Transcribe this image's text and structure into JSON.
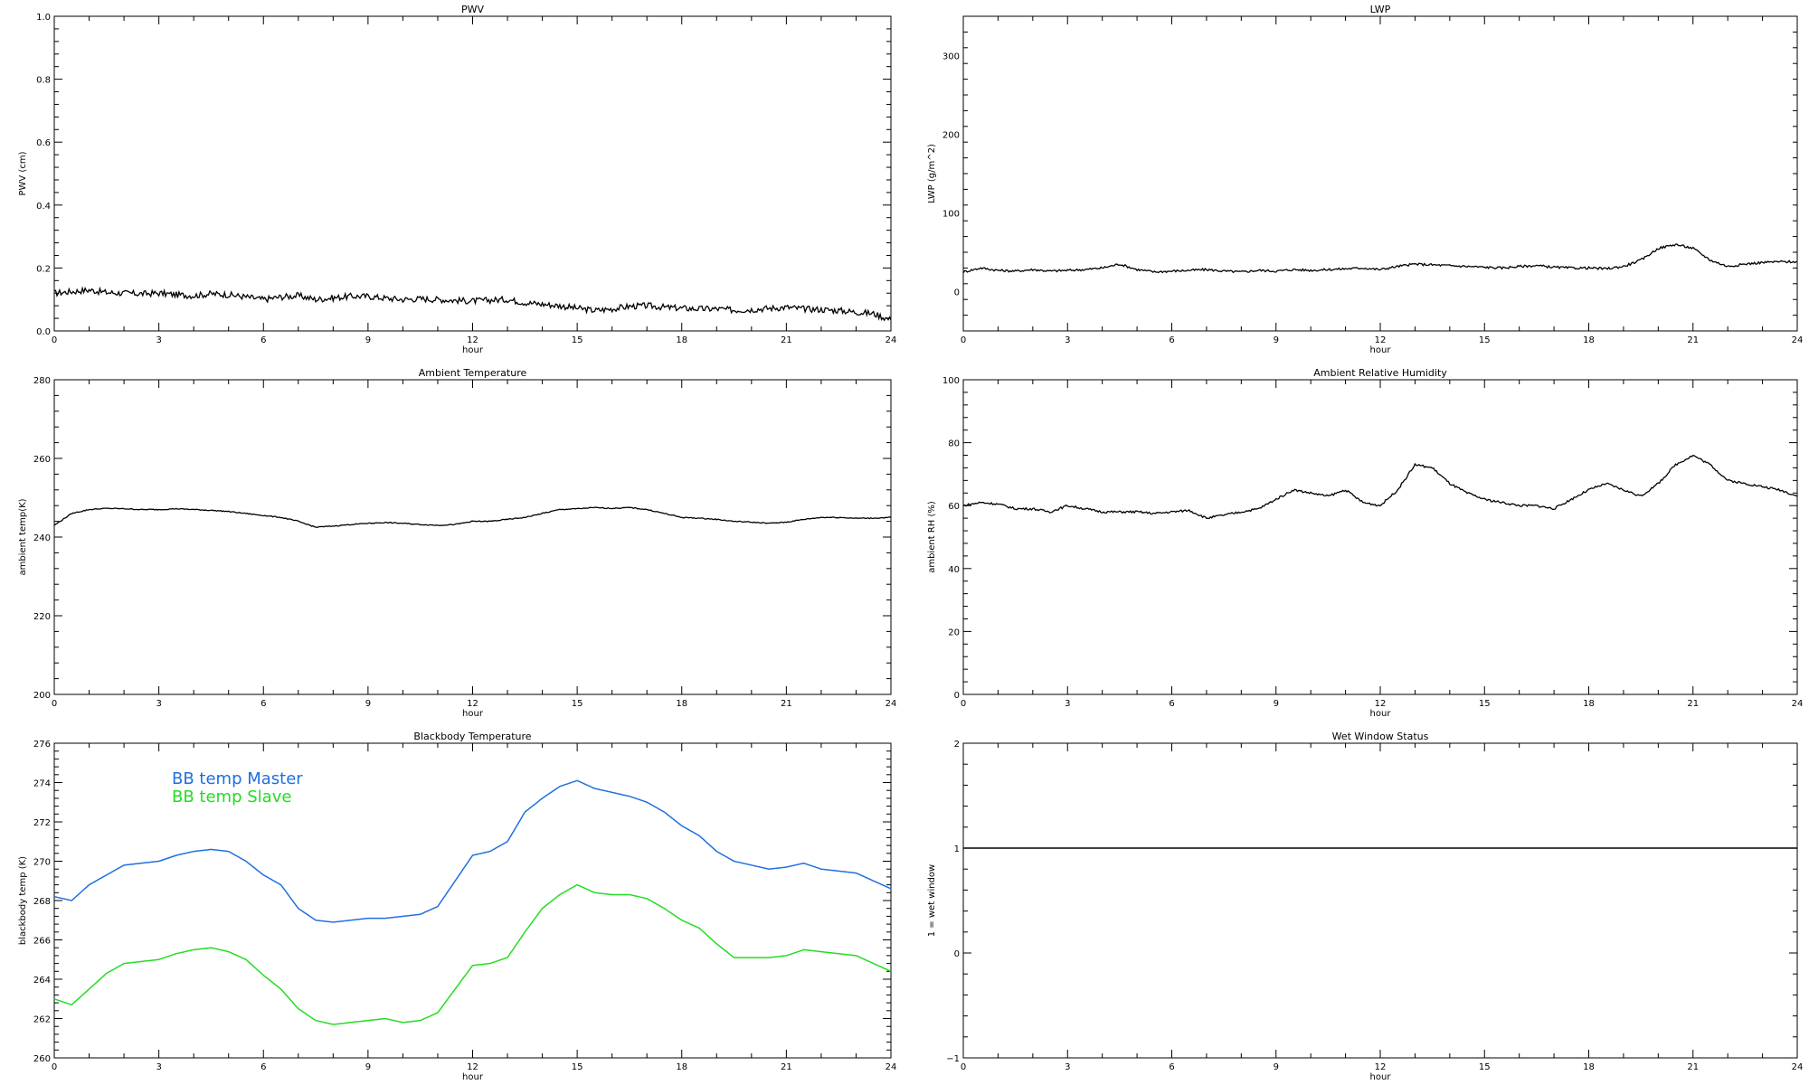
{
  "chart_data": [
    {
      "type": "line",
      "title": "PWV",
      "xlabel": "hour",
      "ylabel": "PWV (cm)",
      "xlim": [
        0,
        24
      ],
      "ylim": [
        0,
        1.0
      ],
      "xticks": [
        0,
        3,
        6,
        9,
        12,
        15,
        18,
        21,
        24
      ],
      "xticklabels": [
        "0",
        "3",
        "6",
        "9",
        "12",
        "15",
        "18",
        "21",
        "24"
      ],
      "yticks": [
        0,
        0.2,
        0.4,
        0.6,
        0.8,
        1.0
      ],
      "yticklabels": [
        "0.0",
        "0.2",
        "0.4",
        "0.6",
        "0.8",
        "1.0"
      ],
      "grid": false,
      "noise": 0.01,
      "series": [
        {
          "color": "#000000",
          "x": [
            0,
            0.5,
            1,
            1.5,
            2,
            2.5,
            3,
            3.5,
            4,
            4.5,
            5,
            5.5,
            6,
            6.5,
            7,
            7.5,
            8,
            8.5,
            9,
            9.5,
            10,
            10.5,
            11,
            11.5,
            12,
            12.5,
            13,
            13.5,
            14,
            14.5,
            15,
            15.5,
            16,
            16.5,
            17,
            17.5,
            18,
            18.5,
            19,
            19.5,
            20,
            20.5,
            21,
            21.5,
            22,
            22.5,
            23,
            23.5,
            24
          ],
          "y": [
            0.12,
            0.125,
            0.13,
            0.122,
            0.12,
            0.118,
            0.12,
            0.115,
            0.112,
            0.118,
            0.115,
            0.108,
            0.1,
            0.108,
            0.112,
            0.1,
            0.105,
            0.11,
            0.11,
            0.104,
            0.1,
            0.102,
            0.1,
            0.097,
            0.095,
            0.098,
            0.1,
            0.09,
            0.085,
            0.08,
            0.072,
            0.065,
            0.07,
            0.078,
            0.08,
            0.075,
            0.072,
            0.07,
            0.07,
            0.066,
            0.068,
            0.072,
            0.075,
            0.07,
            0.068,
            0.065,
            0.06,
            0.055,
            0.035
          ]
        }
      ]
    },
    {
      "type": "line",
      "title": "LWP",
      "xlabel": "hour",
      "ylabel": "LWP (g/m^2)",
      "xlim": [
        0,
        24
      ],
      "ylim": [
        -50,
        350
      ],
      "xticks": [
        0,
        3,
        6,
        9,
        12,
        15,
        18,
        21,
        24
      ],
      "xticklabels": [
        "0",
        "3",
        "6",
        "9",
        "12",
        "15",
        "18",
        "21",
        "24"
      ],
      "yticks": [
        0,
        100,
        200,
        300
      ],
      "yticklabels": [
        "0",
        "100",
        "200",
        "300"
      ],
      "grid": false,
      "noise": 1.5,
      "series": [
        {
          "color": "#000000",
          "x": [
            0,
            0.5,
            1,
            1.5,
            2,
            2.5,
            3,
            3.5,
            4,
            4.5,
            5,
            5.5,
            6,
            6.5,
            7,
            7.5,
            8,
            8.5,
            9,
            9.5,
            10,
            10.5,
            11,
            11.5,
            12,
            12.5,
            13,
            13.5,
            14,
            14.5,
            15,
            15.5,
            16,
            16.5,
            17,
            17.5,
            18,
            18.5,
            19,
            19.5,
            20,
            20.5,
            21,
            21.5,
            22,
            22.5,
            23,
            23.5,
            24
          ],
          "y": [
            25,
            30,
            27,
            26,
            28,
            26,
            27,
            28,
            30,
            35,
            28,
            25,
            26,
            27,
            28,
            26,
            25,
            27,
            26,
            28,
            27,
            28,
            29,
            30,
            28,
            32,
            35,
            34,
            33,
            32,
            31,
            30,
            32,
            33,
            31,
            30,
            30,
            29,
            32,
            40,
            55,
            60,
            55,
            40,
            32,
            35,
            37,
            38,
            38
          ]
        }
      ]
    },
    {
      "type": "line",
      "title": "Ambient Temperature",
      "xlabel": "hour",
      "ylabel": "ambient temp(K)",
      "xlim": [
        0,
        24
      ],
      "ylim": [
        200,
        280
      ],
      "xticks": [
        0,
        3,
        6,
        9,
        12,
        15,
        18,
        21,
        24
      ],
      "xticklabels": [
        "0",
        "3",
        "6",
        "9",
        "12",
        "15",
        "18",
        "21",
        "24"
      ],
      "yticks": [
        200,
        220,
        240,
        260,
        280
      ],
      "yticklabels": [
        "200",
        "220",
        "240",
        "260",
        "280"
      ],
      "grid": false,
      "noise": 0.12,
      "series": [
        {
          "color": "#000000",
          "x": [
            0,
            0.5,
            1,
            1.5,
            2,
            2.5,
            3,
            3.5,
            4,
            4.5,
            5,
            5.5,
            6,
            6.5,
            7,
            7.5,
            8,
            8.5,
            9,
            9.5,
            10,
            10.5,
            11,
            11.5,
            12,
            12.5,
            13,
            13.5,
            14,
            14.5,
            15,
            15.5,
            16,
            16.5,
            17,
            17.5,
            18,
            18.5,
            19,
            19.5,
            20,
            20.5,
            21,
            21.5,
            22,
            22.5,
            23,
            23.5,
            24
          ],
          "y": [
            243,
            246,
            247,
            247.3,
            247.2,
            247,
            247,
            247.2,
            247,
            246.8,
            246.5,
            246,
            245.5,
            245,
            244,
            242.5,
            242.8,
            243.2,
            243.5,
            243.7,
            243.5,
            243.2,
            243,
            243.2,
            244,
            244,
            244.5,
            245,
            246,
            247,
            247.2,
            247.5,
            247.3,
            247.5,
            247,
            246,
            245,
            244.8,
            244.5,
            244,
            243.8,
            243.5,
            243.8,
            244.5,
            245,
            245,
            244.8,
            244.8,
            245
          ]
        }
      ]
    },
    {
      "type": "line",
      "title": "Ambient Relative Humidity",
      "xlabel": "hour",
      "ylabel": "ambient RH (%)",
      "xlim": [
        0,
        24
      ],
      "ylim": [
        0,
        100
      ],
      "xticks": [
        0,
        3,
        6,
        9,
        12,
        15,
        18,
        21,
        24
      ],
      "xticklabels": [
        "0",
        "3",
        "6",
        "9",
        "12",
        "15",
        "18",
        "21",
        "24"
      ],
      "yticks": [
        0,
        20,
        40,
        60,
        80,
        100
      ],
      "yticklabels": [
        "0",
        "20",
        "40",
        "60",
        "80",
        "100"
      ],
      "grid": false,
      "noise": 0.35,
      "series": [
        {
          "color": "#000000",
          "x": [
            0,
            0.5,
            1,
            1.5,
            2,
            2.5,
            3,
            3.5,
            4,
            4.5,
            5,
            5.5,
            6,
            6.5,
            7,
            7.5,
            8,
            8.5,
            9,
            9.5,
            10,
            10.5,
            11,
            11.5,
            12,
            12.5,
            13,
            13.5,
            14,
            14.5,
            15,
            15.5,
            16,
            16.5,
            17,
            17.5,
            18,
            18.5,
            19,
            19.5,
            20,
            20.5,
            21,
            21.5,
            22,
            22.5,
            23,
            23.5,
            24
          ],
          "y": [
            60,
            61,
            60.5,
            59,
            59,
            58,
            60,
            59,
            58,
            58,
            58,
            57.5,
            58,
            58.5,
            56,
            57,
            58,
            59,
            62,
            65,
            64,
            63,
            65,
            61,
            60,
            65,
            73,
            72,
            67,
            64,
            62,
            61,
            60,
            60,
            59,
            62,
            65,
            67,
            65,
            63,
            67,
            73,
            76,
            73,
            68,
            67,
            66,
            65,
            63
          ]
        }
      ]
    },
    {
      "type": "line",
      "title": "Blackbody Temperature",
      "xlabel": "hour",
      "ylabel": "blackbody temp (K)",
      "xlim": [
        0,
        24
      ],
      "ylim": [
        260,
        276
      ],
      "xticks": [
        0,
        3,
        6,
        9,
        12,
        15,
        18,
        21,
        24
      ],
      "xticklabels": [
        "0",
        "3",
        "6",
        "9",
        "12",
        "15",
        "18",
        "21",
        "24"
      ],
      "yticks": [
        260,
        262,
        264,
        266,
        268,
        270,
        272,
        274,
        276
      ],
      "yticklabels": [
        "260",
        "262",
        "264",
        "266",
        "268",
        "270",
        "272",
        "274",
        "276"
      ],
      "grid": false,
      "legend": "top-left",
      "series": [
        {
          "name": "BB temp Master",
          "color": "#1f6fe0",
          "x": [
            0,
            0.5,
            1,
            1.5,
            2,
            2.5,
            3,
            3.5,
            4,
            4.5,
            5,
            5.5,
            6,
            6.5,
            7,
            7.5,
            8,
            8.5,
            9,
            9.5,
            10,
            10.5,
            11,
            11.5,
            12,
            12.5,
            13,
            13.5,
            14,
            14.5,
            15,
            15.5,
            16,
            16.5,
            17,
            17.5,
            18,
            18.5,
            19,
            19.5,
            20,
            20.5,
            21,
            21.5,
            22,
            22.5,
            23,
            23.5,
            24
          ],
          "y": [
            268.2,
            268,
            268.8,
            269.3,
            269.8,
            269.9,
            270,
            270.3,
            270.5,
            270.6,
            270.5,
            270,
            269.3,
            268.8,
            267.6,
            267,
            266.9,
            267,
            267.1,
            267.1,
            267.2,
            267.3,
            267.7,
            269,
            270.3,
            270.5,
            271,
            272.5,
            273.2,
            273.8,
            274.1,
            273.7,
            273.5,
            273.3,
            273,
            272.5,
            271.8,
            271.3,
            270.5,
            270,
            269.8,
            269.6,
            269.7,
            269.9,
            269.6,
            269.5,
            269.4,
            269,
            268.6
          ]
        },
        {
          "name": "BB temp Slave",
          "color": "#22dd22",
          "x": [
            0,
            0.5,
            1,
            1.5,
            2,
            2.5,
            3,
            3.5,
            4,
            4.5,
            5,
            5.5,
            6,
            6.5,
            7,
            7.5,
            8,
            8.5,
            9,
            9.5,
            10,
            10.5,
            11,
            11.5,
            12,
            12.5,
            13,
            13.5,
            14,
            14.5,
            15,
            15.5,
            16,
            16.5,
            17,
            17.5,
            18,
            18.5,
            19,
            19.5,
            20,
            20.5,
            21,
            21.5,
            22,
            22.5,
            23,
            23.5,
            24
          ],
          "y": [
            263,
            262.7,
            263.5,
            264.3,
            264.8,
            264.9,
            265,
            265.3,
            265.5,
            265.6,
            265.4,
            265,
            264.2,
            263.5,
            262.5,
            261.9,
            261.7,
            261.8,
            261.9,
            262,
            261.8,
            261.9,
            262.3,
            263.5,
            264.7,
            264.8,
            265.1,
            266.4,
            267.6,
            268.3,
            268.8,
            268.4,
            268.3,
            268.3,
            268.1,
            267.6,
            267,
            266.6,
            265.8,
            265.1,
            265.1,
            265.1,
            265.2,
            265.5,
            265.4,
            265.3,
            265.2,
            264.8,
            264.4
          ]
        }
      ]
    },
    {
      "type": "line",
      "title": "Wet Window Status",
      "xlabel": "hour",
      "ylabel": "1 = wet window",
      "xlim": [
        0,
        24
      ],
      "ylim": [
        -1,
        2
      ],
      "xticks": [
        0,
        3,
        6,
        9,
        12,
        15,
        18,
        21,
        24
      ],
      "xticklabels": [
        "0",
        "3",
        "6",
        "9",
        "12",
        "15",
        "18",
        "21",
        "24"
      ],
      "yticks": [
        -1,
        0,
        1,
        2
      ],
      "yticklabels": [
        "−1",
        "0",
        "1",
        "2"
      ],
      "grid": false,
      "series": [
        {
          "color": "#000000",
          "x": [
            0,
            24
          ],
          "y": [
            1,
            1
          ]
        }
      ]
    }
  ]
}
